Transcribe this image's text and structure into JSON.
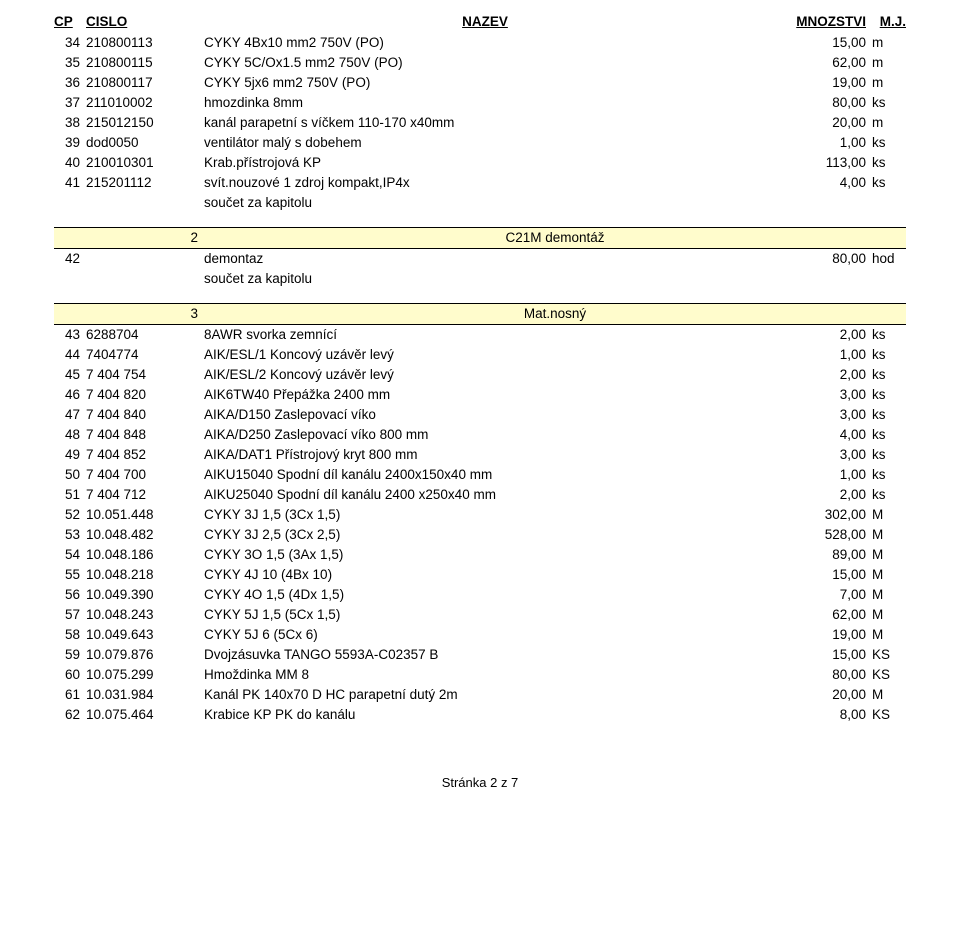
{
  "colors": {
    "section_bg": "#fffccc",
    "text": "#000000",
    "bg": "#ffffff",
    "border": "#000000"
  },
  "header": {
    "cp": "CP",
    "cislo": "CISLO",
    "nazev": "NAZEV",
    "mnozstvi": "MNOZSTVI",
    "mj": "M.J."
  },
  "topRows": [
    {
      "cp": "34",
      "cislo": "210800113",
      "naz": "CYKY 4Bx10 mm2 750V (PO)",
      "mnoz": "15,00",
      "mj": "m"
    },
    {
      "cp": "35",
      "cislo": "210800115",
      "naz": "CYKY 5C/Ox1.5 mm2 750V (PO)",
      "mnoz": "62,00",
      "mj": "m"
    },
    {
      "cp": "36",
      "cislo": "210800117",
      "naz": "CYKY 5jx6 mm2 750V (PO)",
      "mnoz": "19,00",
      "mj": "m"
    },
    {
      "cp": "37",
      "cislo": "211010002",
      "naz": "hmozdinka 8mm",
      "mnoz": "80,00",
      "mj": "ks"
    },
    {
      "cp": "38",
      "cislo": "215012150",
      "naz": "kanál parapetní s víčkem 110-170 x40mm",
      "mnoz": "20,00",
      "mj": "m"
    },
    {
      "cp": "39",
      "cislo": "dod0050",
      "naz": "ventilátor malý s dobehem",
      "mnoz": "1,00",
      "mj": "ks"
    },
    {
      "cp": "40",
      "cislo": "210010301",
      "naz": "Krab.přístrojová KP",
      "mnoz": "113,00",
      "mj": "ks"
    },
    {
      "cp": "41",
      "cislo": "215201112",
      "naz": "svít.nouzové 1 zdroj kompakt,IP4x",
      "mnoz": "4,00",
      "mj": "ks"
    }
  ],
  "sumLabel": "součet za kapitolu",
  "section2": {
    "num": "2",
    "title": "C21M demontáž",
    "rows": [
      {
        "cp": "42",
        "cislo": "",
        "naz": "demontaz",
        "mnoz": "80,00",
        "mj": "hod"
      }
    ]
  },
  "section3": {
    "num": "3",
    "title": "Mat.nosný",
    "rows": [
      {
        "cp": "43",
        "cislo": "6288704",
        "naz": "8AWR svorka zemnící",
        "mnoz": "2,00",
        "mj": "ks"
      },
      {
        "cp": "44",
        "cislo": "7404774",
        "naz": "AIK/ESL/1 Koncový uzávěr levý",
        "mnoz": "1,00",
        "mj": "ks"
      },
      {
        "cp": "45",
        "cislo": "7 404 754",
        "naz": "AIK/ESL/2 Koncový uzávěr levý",
        "mnoz": "2,00",
        "mj": "ks"
      },
      {
        "cp": "46",
        "cislo": "7 404 820",
        "naz": "AIK6TW40 Přepážka 2400 mm",
        "mnoz": "3,00",
        "mj": "ks"
      },
      {
        "cp": "47",
        "cislo": "7 404 840",
        "naz": "AIKA/D150 Zaslepovací víko",
        "mnoz": "3,00",
        "mj": "ks"
      },
      {
        "cp": "48",
        "cislo": "7 404 848",
        "naz": "AIKA/D250 Zaslepovací víko 800 mm",
        "mnoz": "4,00",
        "mj": "ks"
      },
      {
        "cp": "49",
        "cislo": "7 404 852",
        "naz": "AIKA/DAT1 Přístrojový kryt 800 mm",
        "mnoz": "3,00",
        "mj": "ks"
      },
      {
        "cp": "50",
        "cislo": "7 404 700",
        "naz": "AIKU15040 Spodní díl kanálu 2400x150x40 mm",
        "mnoz": "1,00",
        "mj": "ks"
      },
      {
        "cp": "51",
        "cislo": "7 404 712",
        "naz": "AIKU25040 Spodní díl kanálu 2400 x250x40 mm",
        "mnoz": "2,00",
        "mj": "ks"
      },
      {
        "cp": "52",
        "cislo": "10.051.448",
        "naz": "CYKY   3J  1,5  (3Cx  1,5)",
        "mnoz": "302,00",
        "mj": "M"
      },
      {
        "cp": "53",
        "cislo": "10.048.482",
        "naz": "CYKY   3J  2,5  (3Cx  2,5)",
        "mnoz": "528,00",
        "mj": "M"
      },
      {
        "cp": "54",
        "cislo": "10.048.186",
        "naz": "CYKY   3O  1,5 (3Ax  1,5)",
        "mnoz": "89,00",
        "mj": "M"
      },
      {
        "cp": "55",
        "cislo": "10.048.218",
        "naz": "CYKY   4J 10 (4Bx 10)",
        "mnoz": "15,00",
        "mj": "M"
      },
      {
        "cp": "56",
        "cislo": "10.049.390",
        "naz": "CYKY   4O  1,5 (4Dx  1,5)",
        "mnoz": "7,00",
        "mj": "M"
      },
      {
        "cp": "57",
        "cislo": "10.048.243",
        "naz": "CYKY   5J  1,5 (5Cx  1,5)",
        "mnoz": "62,00",
        "mj": "M"
      },
      {
        "cp": "58",
        "cislo": "10.049.643",
        "naz": "CYKY   5J  6 (5Cx  6)",
        "mnoz": "19,00",
        "mj": "M"
      },
      {
        "cp": "59",
        "cislo": "10.079.876",
        "naz": "Dvojzásuvka TANGO 5593A-C02357 B",
        "mnoz": "15,00",
        "mj": "KS"
      },
      {
        "cp": "60",
        "cislo": "10.075.299",
        "naz": "Hmoždinka MM  8",
        "mnoz": "80,00",
        "mj": "KS"
      },
      {
        "cp": "61",
        "cislo": "10.031.984",
        "naz": "Kanál PK 140x70 D HC parapetní dutý 2m",
        "mnoz": "20,00",
        "mj": "M"
      },
      {
        "cp": "62",
        "cislo": "10.075.464",
        "naz": "Krabice KP PK do kanálu",
        "mnoz": "8,00",
        "mj": "KS"
      }
    ]
  },
  "footer": "Stránka 2 z 7"
}
